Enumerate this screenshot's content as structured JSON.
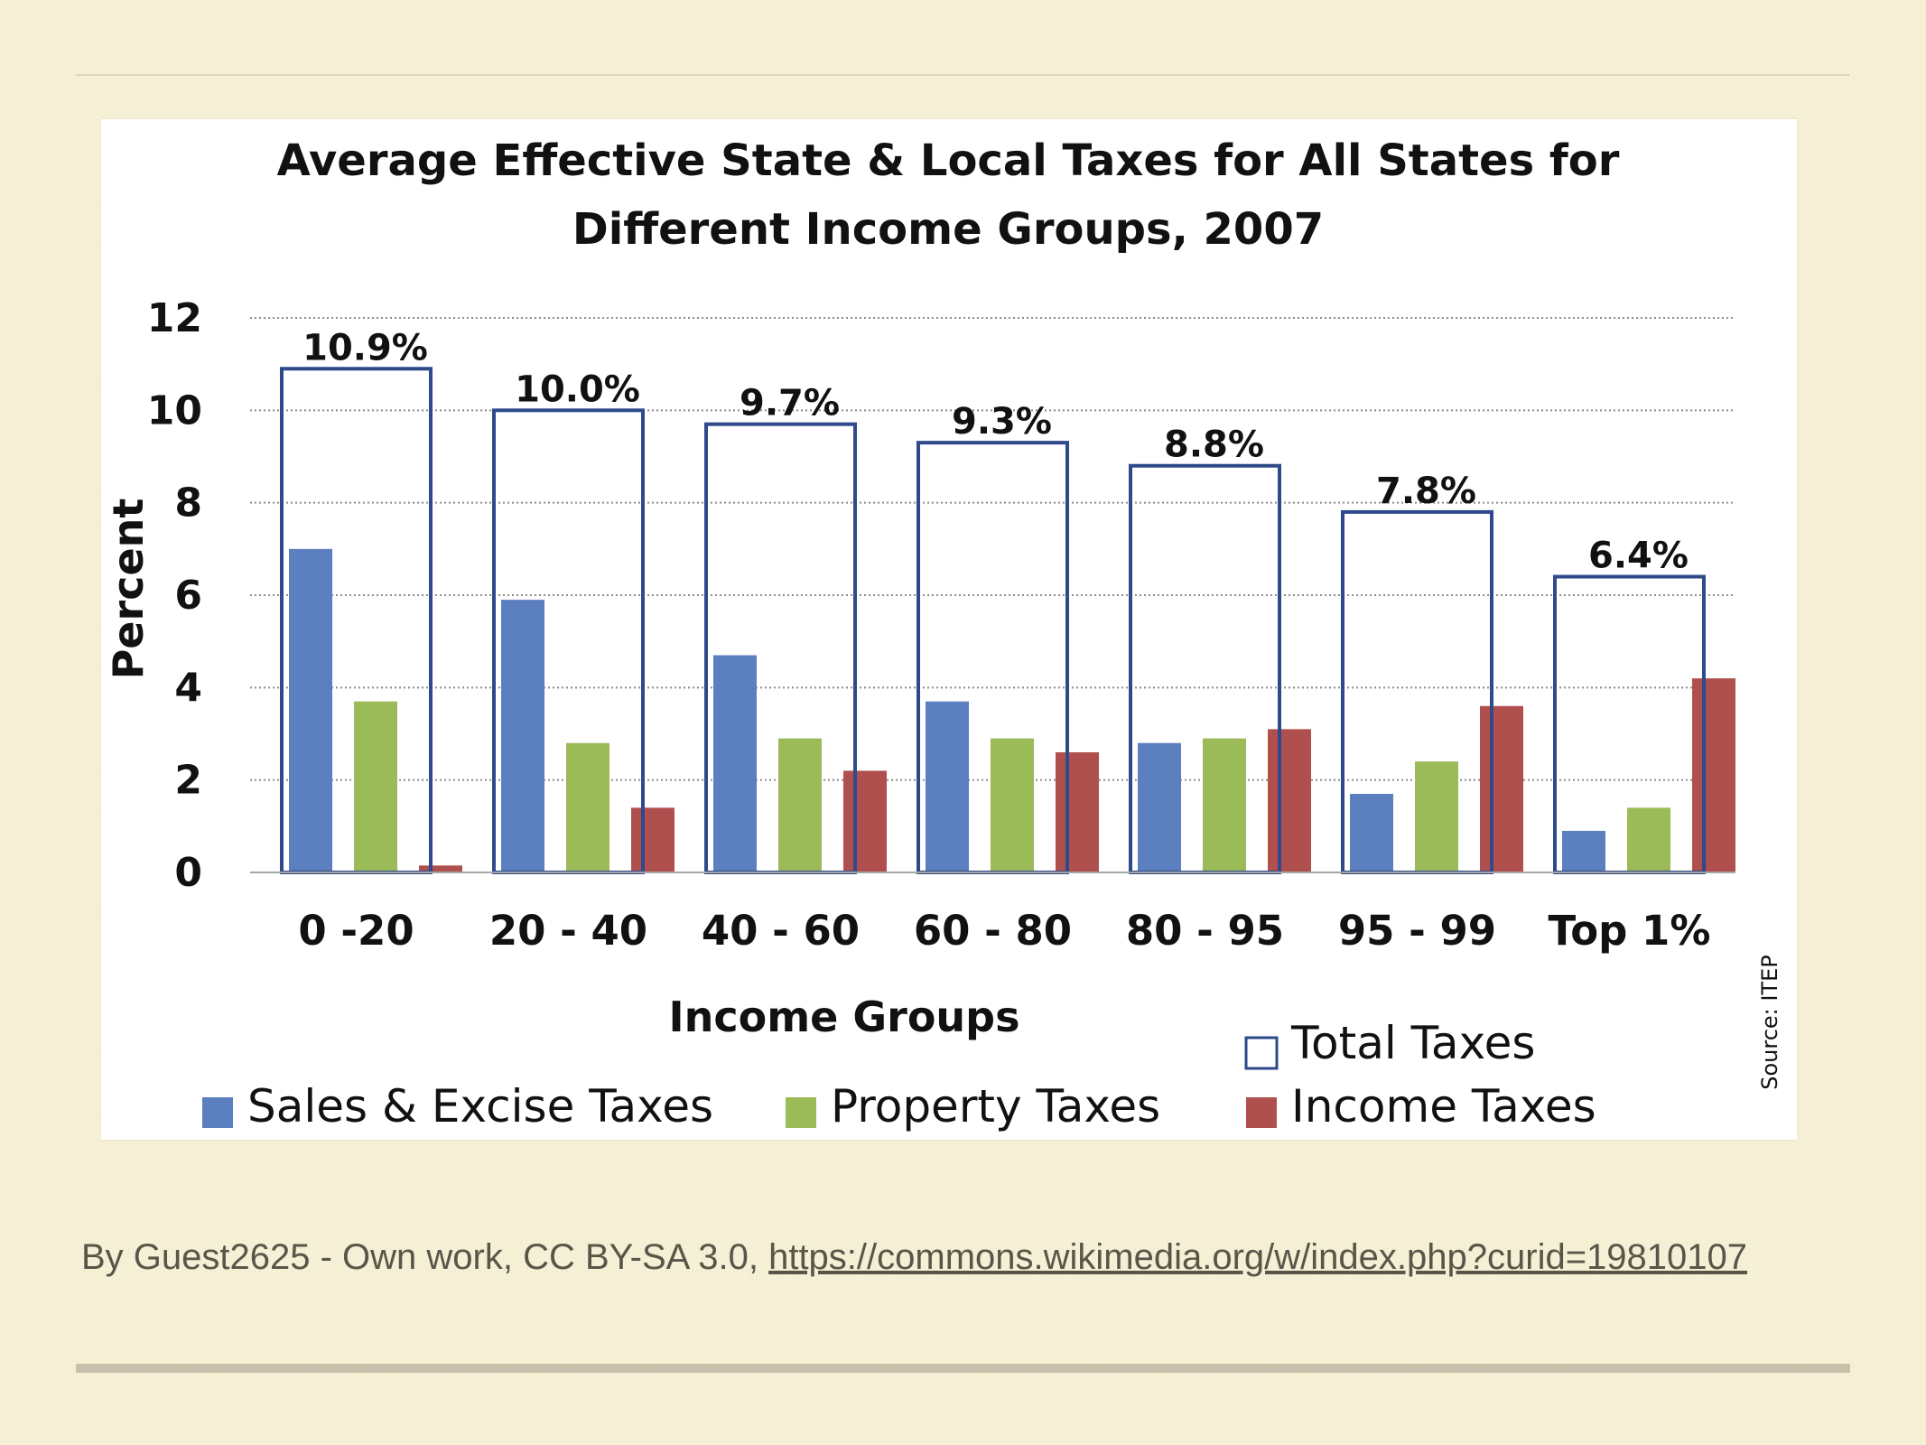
{
  "chart_data": {
    "type": "bar",
    "title": "Average Effective State & Local Taxes for All States for Different Income Groups, 2007",
    "title_lines": [
      "Average Effective State & Local Taxes for All States for",
      "Different Income Groups, 2007"
    ],
    "xlabel": "Income Groups",
    "ylabel": "Percent",
    "ylim": [
      0,
      12
    ],
    "yticks": [
      "0",
      "2",
      "4",
      "6",
      "8",
      "10",
      "12"
    ],
    "grid": "dotted horizontal",
    "categories": [
      "0 -20",
      "20 - 40",
      "40 - 60",
      "60 - 80",
      "80 - 95",
      "95 - 99",
      "Top 1%"
    ],
    "series": [
      {
        "name": "Sales & Excise Taxes",
        "color": "#5b7fbf",
        "values": [
          7.0,
          5.9,
          4.7,
          3.7,
          2.8,
          1.7,
          0.9
        ]
      },
      {
        "name": "Property Taxes",
        "color": "#9bbb59",
        "values": [
          3.7,
          2.8,
          2.9,
          2.9,
          2.9,
          2.4,
          1.4
        ]
      },
      {
        "name": "Income Taxes",
        "color": "#b0504e",
        "values": [
          0.15,
          1.4,
          2.2,
          2.6,
          3.1,
          3.6,
          4.2
        ]
      },
      {
        "name": "Total Taxes",
        "style": "outline",
        "color": "#2e4a8a",
        "values": [
          10.9,
          10.0,
          9.7,
          9.3,
          8.8,
          7.8,
          6.4
        ]
      }
    ],
    "total_labels": [
      "10.9%",
      "10.0%",
      "9.7%",
      "9.3%",
      "8.8%",
      "7.8%",
      "6.4%"
    ],
    "legend_position": "bottom",
    "legend": {
      "total": "Total Taxes",
      "sales": "Sales & Excise Taxes",
      "property": "Property Taxes",
      "income": "Income Taxes"
    },
    "source_note": "Source: ITEP"
  },
  "caption": {
    "prefix": "By Guest2625 - Own work, CC BY-SA 3.0, ",
    "link_text": "https://commons.wikimedia.org/w/index.php?curid=19810107"
  }
}
